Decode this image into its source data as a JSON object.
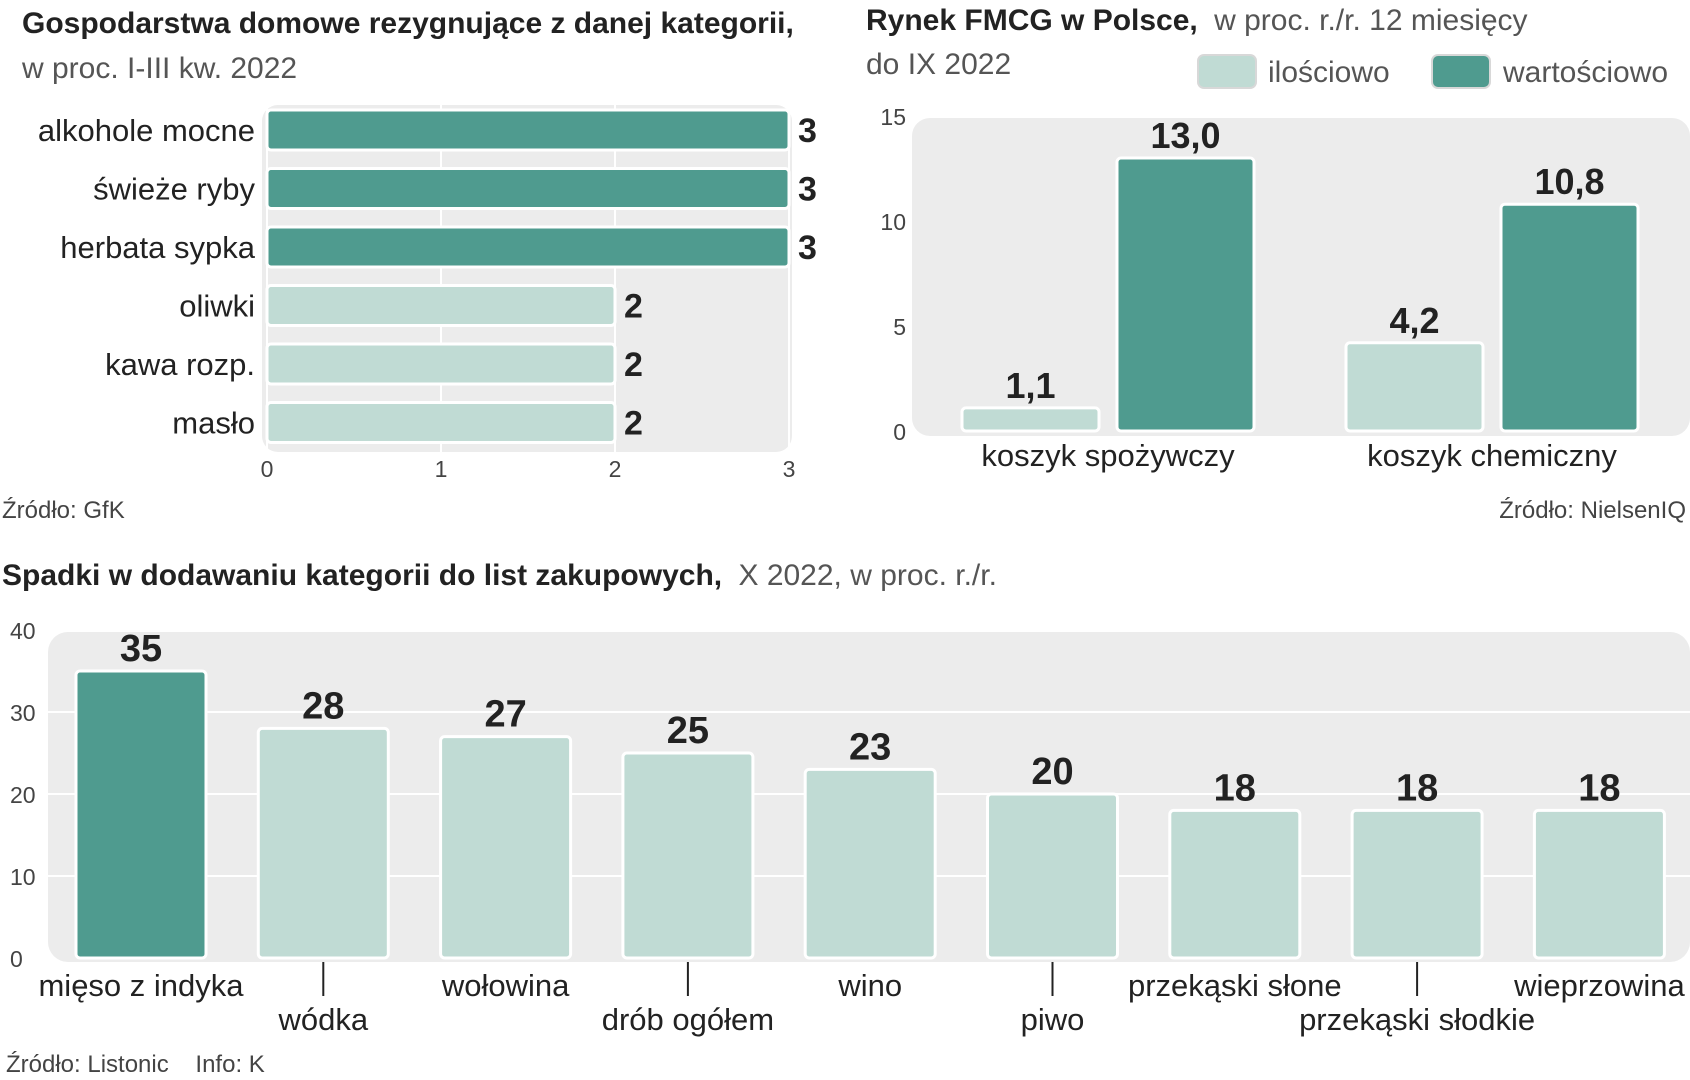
{
  "colors": {
    "dark": "#4f9b8f",
    "light": "#c0dbd4",
    "panel": "#ececec",
    "bar_stroke": "#ffffff",
    "text": "#222222",
    "muted": "#555555"
  },
  "chart_data": [
    {
      "id": "households",
      "type": "bar",
      "orientation": "horizontal",
      "title": "Gospodarstwa domowe rezygnujące z danej kategorii,",
      "subtitle": "w proc. I-III kw. 2022",
      "categories": [
        "alkohole mocne",
        "świeże ryby",
        "herbata sypka",
        "oliwki",
        "kawa rozp.",
        "masło"
      ],
      "values": [
        3,
        3,
        3,
        2,
        2,
        2
      ],
      "value_labels": [
        "3",
        "3",
        "3",
        "2",
        "2",
        "2"
      ],
      "highlight": [
        true,
        true,
        true,
        false,
        false,
        false
      ],
      "xlim": [
        0,
        3
      ],
      "xticks": [
        "0",
        "1",
        "2",
        "3"
      ],
      "grid": true,
      "source": "Źródło: GfK"
    },
    {
      "id": "fmcg",
      "type": "bar",
      "title": "Rynek FMCG w Polsce,",
      "subtitle_1": "w proc. r./r. 12 miesięcy",
      "subtitle_2": "do IX 2022",
      "categories": [
        "koszyk spożywczy",
        "koszyk chemiczny"
      ],
      "series": [
        {
          "name": "ilościowo",
          "values": [
            1.1,
            4.2
          ],
          "labels": [
            "1,1",
            "4,2"
          ]
        },
        {
          "name": "wartościowo",
          "values": [
            13.0,
            10.8
          ],
          "labels": [
            "13,0",
            "10,8"
          ]
        }
      ],
      "ylim": [
        0,
        15
      ],
      "yticks": [
        "0",
        "5",
        "10",
        "15"
      ],
      "legend": "top-right",
      "grid": false,
      "source": "Źródło: NielsenIQ"
    },
    {
      "id": "shopping_lists",
      "type": "bar",
      "title": "Spadki w dodawaniu kategorii do list zakupowych,",
      "subtitle": "X 2022, w proc. r./r.",
      "categories": [
        "mięso z indyka",
        "wódka",
        "wołowina",
        "drób ogółem",
        "wino",
        "piwo",
        "przekąski słone",
        "przekąski słodkie",
        "wieprzowina"
      ],
      "values": [
        35,
        28,
        27,
        25,
        23,
        20,
        18,
        18,
        18
      ],
      "value_labels": [
        "35",
        "28",
        "27",
        "25",
        "23",
        "20",
        "18",
        "18",
        "18"
      ],
      "highlight": [
        true,
        false,
        false,
        false,
        false,
        false,
        false,
        false,
        false
      ],
      "ylim": [
        0,
        40
      ],
      "yticks": [
        "0",
        "10",
        "20",
        "30",
        "40"
      ],
      "grid": true,
      "source": "Źródło: Listonic    Info: K"
    }
  ]
}
